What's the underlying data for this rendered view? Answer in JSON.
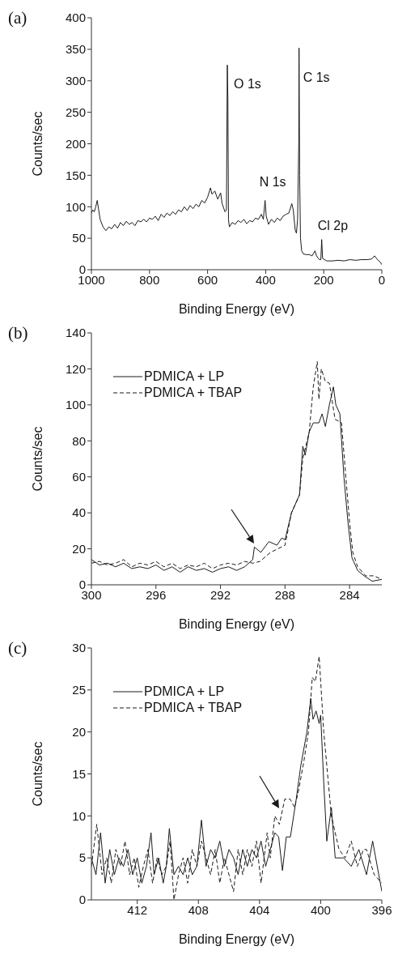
{
  "chart_data": [
    {
      "type": "line",
      "title": "(a)",
      "xlabel": "Binding Energy (eV)",
      "ylabel": "Counts/sec",
      "xlim": [
        1000,
        0
      ],
      "xticks": [
        1000,
        800,
        600,
        400,
        200,
        0
      ],
      "ylim": [
        0,
        400
      ],
      "yticks": [
        0,
        50,
        100,
        150,
        200,
        250,
        300,
        350,
        400
      ],
      "legend": false,
      "marker": "none",
      "line_style": "solid",
      "annotations": [
        {
          "text": "O 1s",
          "x": 532,
          "y": 325
        },
        {
          "text": "N 1s",
          "x": 402,
          "y": 110
        },
        {
          "text": "C 1s",
          "x": 285,
          "y": 352
        },
        {
          "text": "Cl 2p",
          "x": 207,
          "y": 48
        }
      ],
      "series": [
        {
          "color": "#1a1a1a",
          "x": [
            1000,
            995,
            990,
            985,
            980,
            975,
            970,
            960,
            950,
            940,
            930,
            920,
            910,
            900,
            890,
            880,
            870,
            860,
            850,
            840,
            830,
            820,
            810,
            800,
            790,
            780,
            770,
            760,
            750,
            740,
            730,
            720,
            710,
            700,
            690,
            680,
            670,
            660,
            650,
            640,
            630,
            620,
            610,
            600,
            590,
            585,
            575,
            565,
            555,
            550,
            540,
            535,
            532,
            530,
            528,
            525,
            515,
            505,
            495,
            485,
            475,
            465,
            455,
            445,
            435,
            425,
            415,
            408,
            402,
            398,
            390,
            380,
            370,
            360,
            350,
            340,
            330,
            320,
            310,
            305,
            298,
            294,
            290,
            286,
            285,
            283,
            280,
            276,
            270,
            260,
            250,
            240,
            230,
            225,
            215,
            210,
            207,
            204,
            190,
            170,
            150,
            130,
            110,
            90,
            70,
            50,
            35,
            25,
            15,
            5,
            0
          ],
          "values": [
            90,
            95,
            92,
            100,
            110,
            95,
            80,
            68,
            62,
            68,
            65,
            72,
            66,
            75,
            70,
            77,
            72,
            75,
            70,
            78,
            76,
            80,
            76,
            82,
            80,
            85,
            78,
            88,
            83,
            90,
            86,
            92,
            88,
            95,
            92,
            100,
            94,
            102,
            97,
            104,
            100,
            110,
            106,
            115,
            130,
            120,
            125,
            112,
            122,
            105,
            92,
            95,
            325,
            270,
            80,
            68,
            75,
            72,
            78,
            75,
            80,
            73,
            78,
            76,
            82,
            80,
            88,
            80,
            110,
            85,
            72,
            80,
            75,
            82,
            78,
            85,
            88,
            90,
            105,
            95,
            62,
            58,
            80,
            200,
            352,
            150,
            50,
            30,
            25,
            24,
            24,
            22,
            30,
            22,
            16,
            16,
            48,
            18,
            14,
            14,
            15,
            14,
            16,
            15,
            16,
            16,
            17,
            22,
            16,
            12,
            8
          ]
        }
      ]
    },
    {
      "type": "line",
      "title": "(b)",
      "xlabel": "Binding Energy (eV)",
      "ylabel": "Counts/sec",
      "xlim": [
        300,
        282
      ],
      "xticks": [
        300,
        296,
        292,
        288,
        284
      ],
      "ylim": [
        0,
        140
      ],
      "yticks": [
        0,
        20,
        40,
        60,
        80,
        100,
        120,
        140
      ],
      "legend": "top left",
      "marker": "none",
      "series": [
        {
          "name": "PDMICA + LP",
          "color": "#1a1a1a",
          "line_style": "solid",
          "x": [
            300,
            299.5,
            299,
            298.5,
            298,
            297.5,
            297,
            296.5,
            296,
            295.5,
            295,
            294.5,
            294,
            293.5,
            293,
            292.5,
            292,
            291.5,
            291,
            290.5,
            290,
            289.9,
            289.5,
            289,
            288.5,
            288.2,
            288,
            287.6,
            287.1,
            286.9,
            286.75,
            286.5,
            286.25,
            285.9,
            285.7,
            285.5,
            285.25,
            285,
            284.85,
            284.6,
            284.35,
            284.1,
            283.85,
            283.5,
            283.1,
            282.6,
            282
          ],
          "values": [
            14,
            11,
            12,
            10,
            12,
            9,
            10,
            9,
            11,
            8,
            10,
            7,
            10,
            8,
            9,
            7,
            9,
            10,
            8,
            10,
            14,
            21,
            18,
            24,
            22,
            26,
            25,
            40,
            50,
            77,
            72,
            85,
            90,
            90,
            95,
            88,
            100,
            110,
            100,
            95,
            60,
            35,
            15,
            8,
            5,
            2,
            3
          ]
        },
        {
          "name": "PDMICA + TBAP",
          "color": "#1a1a1a",
          "line_style": "dashed",
          "x": [
            300,
            299.5,
            299,
            298.5,
            298,
            297.5,
            297,
            296.5,
            296,
            295.5,
            295,
            294.5,
            294,
            293.5,
            293,
            292.5,
            292,
            291.5,
            291,
            290.5,
            290,
            289.55,
            288.9,
            288,
            287.6,
            287.1,
            286.9,
            286.5,
            286.25,
            286,
            285.9,
            285.75,
            285.5,
            285.25,
            284.9,
            284.5,
            284.25,
            284,
            283.8,
            283.5,
            283,
            282.5,
            282
          ],
          "values": [
            12,
            13,
            11,
            12,
            14,
            10,
            12,
            11,
            13,
            10,
            12,
            9,
            11,
            10,
            12,
            9,
            11,
            12,
            11,
            13,
            12,
            13,
            18,
            22,
            40,
            50,
            70,
            85,
            110,
            124,
            103,
            120,
            113,
            112,
            92,
            90,
            62,
            35,
            18,
            10,
            5,
            5,
            3
          ]
        }
      ]
    },
    {
      "type": "line",
      "title": "(c)",
      "xlabel": "Binding Energy (eV)",
      "ylabel": "Counts/sec",
      "xlim": [
        415,
        396
      ],
      "xticks": [
        412,
        408,
        404,
        400,
        396
      ],
      "ylim": [
        0,
        30
      ],
      "yticks": [
        0,
        5,
        10,
        15,
        20,
        25,
        30
      ],
      "legend": "top left",
      "marker": "none",
      "series": [
        {
          "name": "PDMICA + LP",
          "color": "#1a1a1a",
          "line_style": "solid",
          "x": [
            415,
            414.7,
            414.4,
            414.1,
            413.8,
            413.5,
            413.2,
            412.9,
            412.6,
            412.3,
            412,
            411.7,
            411.4,
            411.1,
            410.9,
            410.6,
            410.3,
            410.1,
            409.9,
            409.6,
            409.3,
            409,
            408.7,
            408.4,
            408.1,
            407.8,
            407.5,
            407.2,
            406.9,
            406.6,
            406.3,
            406,
            405.7,
            405.4,
            405.1,
            404.8,
            404.5,
            404.2,
            403.9,
            403.6,
            403.3,
            403,
            402.75,
            402.5,
            402.25,
            401.98,
            401.6,
            401.3,
            400.9,
            400.65,
            400.5,
            400.3,
            400.1,
            400,
            399.8,
            399.6,
            399.3,
            399.05,
            398.5,
            398,
            397.5,
            397,
            396.6,
            396.2,
            396
          ],
          "values": [
            5,
            3,
            8,
            2,
            6,
            3,
            5,
            4,
            6,
            3,
            5,
            2,
            4,
            8,
            3,
            5,
            2,
            4,
            8.5,
            3,
            4,
            3,
            5,
            3,
            4,
            9.5,
            4,
            6,
            5,
            7,
            4,
            6,
            5,
            3,
            6,
            4,
            6,
            5,
            7,
            4,
            6,
            8,
            7.5,
            3.5,
            7.5,
            7.5,
            12,
            16,
            20,
            24,
            21.5,
            22.5,
            21,
            22,
            14,
            7,
            11,
            5,
            5,
            4,
            6,
            3,
            7,
            3,
            1
          ]
        },
        {
          "name": "PDMICA + TBAP",
          "color": "#1a1a1a",
          "line_style": "dashed",
          "x": [
            415,
            414.65,
            414.3,
            414,
            413.7,
            413.4,
            413.1,
            412.8,
            412.5,
            412.2,
            411.9,
            411.6,
            411.3,
            411,
            410.7,
            410.4,
            410.1,
            409.85,
            409.6,
            409.3,
            409,
            408.7,
            408.4,
            408.1,
            407.8,
            407.5,
            407.2,
            406.9,
            406.6,
            406.3,
            406,
            405.7,
            405.4,
            405.1,
            404.8,
            404.5,
            404.2,
            403.9,
            403.5,
            403.3,
            403,
            402.7,
            402.35,
            402,
            401.7,
            401.45,
            401.1,
            400.8,
            400.55,
            400.35,
            400.1,
            399.8,
            399.3,
            398.8,
            398.4,
            398,
            397.6,
            397.2,
            397,
            396.5,
            396
          ],
          "values": [
            4,
            9,
            3,
            5,
            2,
            6,
            4,
            7,
            3,
            5,
            1.5,
            4,
            6,
            2,
            5,
            3,
            4,
            7,
            0,
            3,
            5,
            2,
            6,
            4,
            7,
            5,
            3,
            6,
            2,
            5,
            3,
            1,
            6,
            3,
            6,
            4,
            7,
            2,
            8,
            5,
            10,
            9,
            12,
            12,
            11,
            13,
            16.5,
            20,
            26.5,
            26,
            29,
            20,
            10,
            6,
            5,
            7,
            4,
            6,
            6,
            3,
            2
          ]
        }
      ]
    }
  ]
}
